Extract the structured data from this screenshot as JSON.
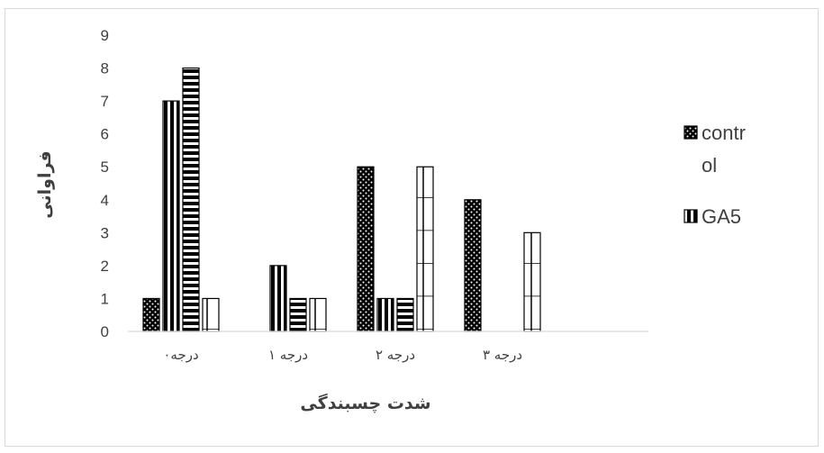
{
  "chart_data": {
    "type": "bar",
    "title": "",
    "xlabel": "شدت چسبندگی",
    "ylabel": "فراوانی",
    "ylim": [
      0,
      9
    ],
    "yticks": [
      0,
      1,
      2,
      3,
      4,
      5,
      6,
      7,
      8,
      9
    ],
    "grid": false,
    "legend_position": "right",
    "categories": [
      "درجه۰",
      "درجه ۱",
      "درجه ۲",
      "درجه ۳"
    ],
    "series": [
      {
        "name": "contr ol",
        "pattern": "dots",
        "values": [
          1,
          0,
          5,
          4
        ]
      },
      {
        "name": "GA5",
        "pattern": "vertical",
        "values": [
          7,
          2,
          1,
          0
        ]
      },
      {
        "pattern": "horizontal",
        "values": [
          8,
          1,
          1,
          0
        ]
      },
      {
        "pattern": "grid",
        "values": [
          1,
          1,
          5,
          3
        ]
      }
    ],
    "legend": [
      {
        "lines": [
          "contr",
          "ol"
        ],
        "pattern": "dots"
      },
      {
        "lines": [
          "GA5"
        ],
        "pattern": "vertical"
      }
    ]
  }
}
